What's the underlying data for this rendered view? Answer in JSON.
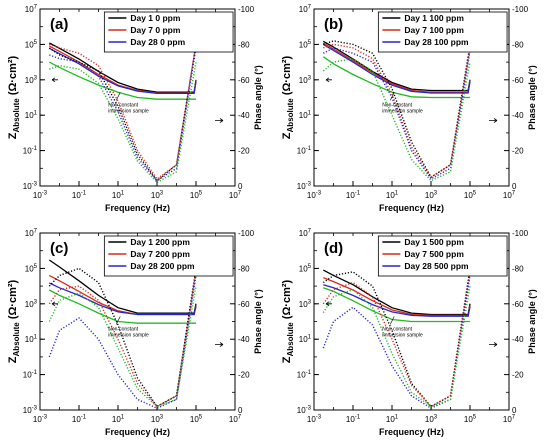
{
  "chart_data": [
    {
      "type": "line",
      "panel_label": "(a)",
      "xlabel": "Frequency (Hz)",
      "ylabel_left": "Z_Absolute (Ω·cm²)",
      "ylabel_right": "Phase angle (°)",
      "x_scale": "log",
      "xlim": [
        0.001,
        10000000
      ],
      "y_left_scale": "log",
      "y_left_lim": [
        0.001,
        10000000
      ],
      "y_right_lim": [
        0,
        -100
      ],
      "x_ticks": [
        "10-3",
        "10-1",
        "101",
        "103",
        "105",
        "107"
      ],
      "y_left_ticks": [
        "10-3",
        "10-1",
        "101",
        "103",
        "105",
        "107"
      ],
      "y_right_ticks": [
        "0",
        "-20",
        "-40",
        "-60",
        "-80",
        "-100"
      ],
      "annotation": "Non-constant\nimmersion sample",
      "series": [
        {
          "name": "Day 1 0 ppm",
          "color": "#000000",
          "kind": "impedance",
          "x": [
            0.003,
            0.01,
            0.1,
            1,
            10,
            100,
            1000,
            10000,
            80000,
            100000
          ],
          "y": [
            120000,
            60000,
            15000,
            3000,
            700,
            300,
            200,
            200,
            200,
            1000
          ]
        },
        {
          "name": "Day 7 0 ppm",
          "color": "#d62a1e",
          "kind": "impedance",
          "x": [
            0.003,
            0.01,
            0.1,
            1,
            10,
            100,
            1000,
            10000,
            80000,
            100000
          ],
          "y": [
            80000,
            40000,
            10000,
            2000,
            500,
            250,
            180,
            180,
            180,
            900
          ]
        },
        {
          "name": "Day 28 0 ppm",
          "color": "#2727c8",
          "kind": "impedance",
          "x": [
            0.003,
            0.01,
            0.1,
            1,
            10,
            100,
            1000,
            10000,
            80000,
            100000
          ],
          "y": [
            60000,
            30000,
            8000,
            1600,
            450,
            230,
            170,
            170,
            170,
            800
          ]
        },
        {
          "name": "",
          "color": "#22bb22",
          "kind": "impedance",
          "x": [
            0.003,
            0.01,
            0.1,
            1,
            10,
            100,
            1000,
            10000,
            80000,
            100000
          ],
          "y": [
            10000,
            5000,
            1500,
            500,
            200,
            100,
            80,
            80,
            80,
            80
          ]
        },
        {
          "name": "",
          "color": "#000000",
          "kind": "phase",
          "x": [
            0.003,
            0.01,
            0.1,
            1,
            10,
            100,
            1000,
            10000,
            100000
          ],
          "y": [
            -78,
            -74,
            -70,
            -65,
            -45,
            -18,
            -3,
            -12,
            -80
          ]
        },
        {
          "name": "",
          "color": "#d62a1e",
          "kind": "phase",
          "x": [
            0.003,
            0.01,
            0.1,
            1,
            10,
            100,
            1000,
            10000,
            100000
          ],
          "y": [
            -80,
            -78,
            -75,
            -68,
            -48,
            -20,
            -4,
            -12,
            -80
          ]
        },
        {
          "name": "",
          "color": "#2727c8",
          "kind": "phase",
          "x": [
            0.003,
            0.01,
            0.1,
            1,
            10,
            100,
            1000,
            10000,
            100000
          ],
          "y": [
            -74,
            -72,
            -70,
            -62,
            -42,
            -16,
            -3,
            -10,
            -78
          ]
        },
        {
          "name": "",
          "color": "#22bb22",
          "kind": "phase",
          "x": [
            0.003,
            0.01,
            0.1,
            1,
            10,
            100,
            1000,
            10000,
            100000
          ],
          "y": [
            -66,
            -68,
            -66,
            -58,
            -38,
            -14,
            -2,
            -8,
            -70
          ]
        }
      ]
    },
    {
      "type": "line",
      "panel_label": "(b)",
      "xlabel": "Frequency (Hz)",
      "ylabel_left": "Z_Absolute (Ω·cm²)",
      "ylabel_right": "Phase angle (°)",
      "x_scale": "log",
      "xlim": [
        0.001,
        10000000
      ],
      "y_left_scale": "log",
      "y_left_lim": [
        0.001,
        10000000
      ],
      "y_right_lim": [
        0,
        -100
      ],
      "x_ticks": [
        "10-3",
        "10-1",
        "101",
        "103",
        "105",
        "107"
      ],
      "y_left_ticks": [
        "10-3",
        "10-1",
        "101",
        "103",
        "105",
        "107"
      ],
      "y_right_ticks": [
        "0",
        "-20",
        "-40",
        "-60",
        "-80",
        "-100"
      ],
      "annotation": "Non-constant\nimmersion sample",
      "series": [
        {
          "name": "Day 1 100 ppm",
          "color": "#000000",
          "kind": "impedance",
          "x": [
            0.003,
            0.01,
            0.1,
            1,
            10,
            100,
            1000,
            10000,
            80000,
            100000
          ],
          "y": [
            150000,
            70000,
            15000,
            3000,
            700,
            300,
            250,
            250,
            250,
            1000
          ]
        },
        {
          "name": "Day 7 100 ppm",
          "color": "#d62a1e",
          "kind": "impedance",
          "x": [
            0.003,
            0.01,
            0.1,
            1,
            10,
            100,
            1000,
            10000,
            80000,
            100000
          ],
          "y": [
            120000,
            55000,
            12000,
            2500,
            600,
            250,
            200,
            200,
            200,
            900
          ]
        },
        {
          "name": "Day 28 100 ppm",
          "color": "#2727c8",
          "kind": "impedance",
          "x": [
            0.003,
            0.01,
            0.1,
            1,
            10,
            100,
            1000,
            10000,
            80000,
            100000
          ],
          "y": [
            100000,
            45000,
            10000,
            2000,
            500,
            220,
            180,
            180,
            180,
            800
          ]
        },
        {
          "name": "",
          "color": "#22bb22",
          "kind": "impedance",
          "x": [
            0.003,
            0.01,
            0.1,
            1,
            10,
            100,
            1000,
            10000,
            80000,
            100000
          ],
          "y": [
            20000,
            8000,
            2000,
            600,
            200,
            110,
            100,
            100,
            100,
            100
          ]
        },
        {
          "name": "",
          "color": "#000000",
          "kind": "phase",
          "x": [
            0.003,
            0.01,
            0.1,
            1,
            10,
            100,
            1000,
            10000,
            100000
          ],
          "y": [
            -80,
            -82,
            -80,
            -75,
            -55,
            -25,
            -5,
            -12,
            -80
          ]
        },
        {
          "name": "",
          "color": "#d62a1e",
          "kind": "phase",
          "x": [
            0.003,
            0.01,
            0.1,
            1,
            10,
            100,
            1000,
            10000,
            100000
          ],
          "y": [
            -78,
            -80,
            -78,
            -72,
            -52,
            -22,
            -5,
            -12,
            -78
          ]
        },
        {
          "name": "",
          "color": "#2727c8",
          "kind": "phase",
          "x": [
            0.003,
            0.01,
            0.1,
            1,
            10,
            100,
            1000,
            10000,
            100000
          ],
          "y": [
            -75,
            -78,
            -75,
            -70,
            -50,
            -20,
            -4,
            -10,
            -76
          ]
        },
        {
          "name": "",
          "color": "#22bb22",
          "kind": "phase",
          "x": [
            0.003,
            0.01,
            0.1,
            1,
            10,
            100,
            1000,
            10000,
            100000
          ],
          "y": [
            -65,
            -70,
            -72,
            -65,
            -40,
            -15,
            -3,
            -8,
            -70
          ]
        }
      ]
    },
    {
      "type": "line",
      "panel_label": "(c)",
      "xlabel": "Frequency (Hz)",
      "ylabel_left": "Z_Absolute (Ω·cm²)",
      "ylabel_right": "Phase angle (°)",
      "x_scale": "log",
      "xlim": [
        0.001,
        10000000
      ],
      "y_left_scale": "log",
      "y_left_lim": [
        0.001,
        10000000
      ],
      "y_right_lim": [
        0,
        -100
      ],
      "x_ticks": [
        "10-3",
        "10-1",
        "101",
        "103",
        "105",
        "107"
      ],
      "y_left_ticks": [
        "10-3",
        "10-1",
        "101",
        "103",
        "105",
        "107"
      ],
      "y_right_ticks": [
        "0",
        "-20",
        "-40",
        "-60",
        "-80",
        "-100"
      ],
      "annotation": "Non-constant\nimmersion sample",
      "series": [
        {
          "name": "Day 1 200 ppm",
          "color": "#000000",
          "kind": "impedance",
          "x": [
            0.003,
            0.01,
            0.1,
            1,
            10,
            100,
            1000,
            10000,
            80000,
            100000
          ],
          "y": [
            300000,
            120000,
            20000,
            3000,
            600,
            300,
            300,
            300,
            300,
            1000
          ]
        },
        {
          "name": "Day 7 200 ppm",
          "color": "#d62a1e",
          "kind": "impedance",
          "x": [
            0.003,
            0.01,
            0.1,
            1,
            10,
            100,
            1000,
            10000,
            80000,
            100000
          ],
          "y": [
            40000,
            20000,
            5000,
            1200,
            400,
            250,
            250,
            250,
            250,
            800
          ]
        },
        {
          "name": "Day 28 200 ppm",
          "color": "#2727c8",
          "kind": "impedance",
          "x": [
            0.003,
            0.01,
            0.1,
            1,
            10,
            100,
            1000,
            10000,
            80000,
            100000
          ],
          "y": [
            15000,
            8000,
            3000,
            900,
            350,
            250,
            250,
            250,
            250,
            700
          ]
        },
        {
          "name": "",
          "color": "#22bb22",
          "kind": "impedance",
          "x": [
            0.003,
            0.01,
            0.1,
            1,
            10,
            100,
            1000,
            10000,
            80000,
            100000
          ],
          "y": [
            6000,
            3000,
            1000,
            300,
            100,
            80,
            80,
            80,
            80,
            80
          ]
        },
        {
          "name": "",
          "color": "#000000",
          "kind": "phase",
          "x": [
            0.003,
            0.01,
            0.1,
            1,
            10,
            100,
            1000,
            10000,
            100000
          ],
          "y": [
            -70,
            -76,
            -80,
            -72,
            -48,
            -18,
            -2,
            -8,
            -80
          ]
        },
        {
          "name": "",
          "color": "#d62a1e",
          "kind": "phase",
          "x": [
            0.003,
            0.01,
            0.1,
            1,
            10,
            100,
            1000,
            10000,
            100000
          ],
          "y": [
            -60,
            -68,
            -70,
            -62,
            -40,
            -15,
            -2,
            -8,
            -78
          ]
        },
        {
          "name": "",
          "color": "#2727c8",
          "kind": "phase",
          "x": [
            0.003,
            0.01,
            0.1,
            1,
            10,
            100,
            1000,
            10000,
            100000
          ],
          "y": [
            -30,
            -45,
            -52,
            -40,
            -20,
            -6,
            -1,
            -6,
            -76
          ]
        },
        {
          "name": "",
          "color": "#22bb22",
          "kind": "phase",
          "x": [
            0.003,
            0.01,
            0.1,
            1,
            10,
            100,
            1000,
            10000,
            100000
          ],
          "y": [
            -50,
            -62,
            -66,
            -58,
            -35,
            -12,
            -2,
            -6,
            -70
          ]
        }
      ]
    },
    {
      "type": "line",
      "panel_label": "(d)",
      "xlabel": "Frequency (Hz)",
      "ylabel_left": "Z_Absolute (Ω·cm²)",
      "ylabel_right": "Phase angle (°)",
      "x_scale": "log",
      "xlim": [
        0.001,
        10000000
      ],
      "y_left_scale": "log",
      "y_left_lim": [
        0.001,
        10000000
      ],
      "y_right_lim": [
        0,
        -100
      ],
      "x_ticks": [
        "10-3",
        "10-1",
        "101",
        "103",
        "105",
        "107"
      ],
      "y_left_ticks": [
        "10-3",
        "10-1",
        "101",
        "103",
        "105",
        "107"
      ],
      "y_right_ticks": [
        "0",
        "-20",
        "-40",
        "-60",
        "-80",
        "-100"
      ],
      "annotation": "Non-constant\nimmersion sample",
      "series": [
        {
          "name": "Day 1 500 ppm",
          "color": "#000000",
          "kind": "impedance",
          "x": [
            0.003,
            0.01,
            0.1,
            1,
            10,
            100,
            1000,
            10000,
            80000,
            100000
          ],
          "y": [
            80000,
            40000,
            12000,
            2500,
            600,
            300,
            250,
            250,
            250,
            1000
          ]
        },
        {
          "name": "Day 7 500 ppm",
          "color": "#d62a1e",
          "kind": "impedance",
          "x": [
            0.003,
            0.01,
            0.1,
            1,
            10,
            100,
            1000,
            10000,
            80000,
            100000
          ],
          "y": [
            30000,
            18000,
            6000,
            1500,
            450,
            250,
            220,
            220,
            220,
            800
          ]
        },
        {
          "name": "Day 28 500 ppm",
          "color": "#2727c8",
          "kind": "impedance",
          "x": [
            0.003,
            0.01,
            0.1,
            1,
            10,
            100,
            1000,
            10000,
            80000,
            100000
          ],
          "y": [
            12000,
            8000,
            3000,
            900,
            350,
            220,
            200,
            200,
            200,
            700
          ]
        },
        {
          "name": "",
          "color": "#22bb22",
          "kind": "impedance",
          "x": [
            0.003,
            0.01,
            0.1,
            1,
            10,
            100,
            1000,
            10000,
            80000,
            100000
          ],
          "y": [
            8000,
            5000,
            1500,
            400,
            130,
            100,
            100,
            100,
            100,
            100
          ]
        },
        {
          "name": "",
          "color": "#000000",
          "kind": "phase",
          "x": [
            0.003,
            0.01,
            0.1,
            1,
            10,
            100,
            1000,
            10000,
            100000
          ],
          "y": [
            -72,
            -76,
            -78,
            -70,
            -45,
            -15,
            -2,
            -8,
            -80
          ]
        },
        {
          "name": "",
          "color": "#d62a1e",
          "kind": "phase",
          "x": [
            0.003,
            0.01,
            0.1,
            1,
            10,
            100,
            1000,
            10000,
            100000
          ],
          "y": [
            -60,
            -68,
            -72,
            -64,
            -40,
            -14,
            -2,
            -8,
            -78
          ]
        },
        {
          "name": "",
          "color": "#2727c8",
          "kind": "phase",
          "x": [
            0.003,
            0.01,
            0.1,
            1,
            10,
            100,
            1000,
            10000,
            100000
          ],
          "y": [
            -35,
            -50,
            -58,
            -48,
            -25,
            -8,
            -1,
            -6,
            -76
          ]
        },
        {
          "name": "",
          "color": "#22bb22",
          "kind": "phase",
          "x": [
            0.003,
            0.01,
            0.1,
            1,
            10,
            100,
            1000,
            10000,
            100000
          ],
          "y": [
            -55,
            -64,
            -68,
            -58,
            -32,
            -10,
            -2,
            -6,
            -70
          ]
        }
      ]
    }
  ]
}
